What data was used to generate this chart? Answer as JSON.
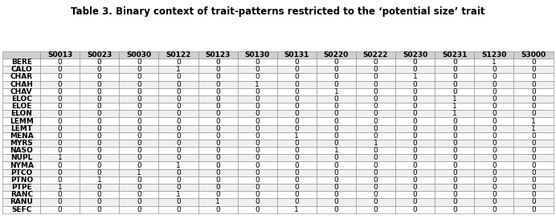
{
  "title": "Table 3. Binary context of trait-patterns restricted to the ‘potential size’ trait",
  "columns": [
    "",
    "S0013",
    "S0023",
    "S0030",
    "S0122",
    "S0123",
    "S0130",
    "S0131",
    "S0220",
    "S0222",
    "S0230",
    "S0231",
    "S1230",
    "S3000"
  ],
  "rows": [
    [
      "BERE",
      0,
      0,
      0,
      0,
      0,
      0,
      0,
      0,
      0,
      0,
      0,
      1,
      0
    ],
    [
      "CALO",
      0,
      0,
      0,
      1,
      0,
      0,
      0,
      0,
      0,
      0,
      0,
      0,
      0
    ],
    [
      "CHAR",
      0,
      0,
      0,
      0,
      0,
      0,
      0,
      0,
      0,
      1,
      0,
      0,
      0
    ],
    [
      "CHAH",
      0,
      0,
      0,
      0,
      0,
      1,
      0,
      0,
      0,
      0,
      0,
      0,
      0
    ],
    [
      "CHAV",
      0,
      0,
      0,
      0,
      0,
      0,
      0,
      1,
      0,
      0,
      0,
      0,
      0
    ],
    [
      "ELOC",
      0,
      0,
      0,
      0,
      0,
      0,
      0,
      0,
      0,
      0,
      1,
      0,
      0
    ],
    [
      "ELOE",
      0,
      0,
      0,
      0,
      0,
      0,
      0,
      0,
      0,
      0,
      1,
      0,
      0
    ],
    [
      "ELON",
      0,
      0,
      0,
      0,
      0,
      0,
      0,
      0,
      0,
      0,
      1,
      0,
      0
    ],
    [
      "LEMM",
      0,
      0,
      0,
      0,
      0,
      0,
      0,
      0,
      0,
      0,
      0,
      0,
      1
    ],
    [
      "LEMT",
      0,
      0,
      0,
      0,
      0,
      0,
      0,
      0,
      0,
      0,
      0,
      0,
      1
    ],
    [
      "MENA",
      0,
      0,
      0,
      0,
      0,
      0,
      1,
      0,
      0,
      0,
      0,
      0,
      0
    ],
    [
      "MYRS",
      0,
      0,
      0,
      0,
      0,
      0,
      0,
      0,
      1,
      0,
      0,
      0,
      0
    ],
    [
      "NASO",
      0,
      0,
      0,
      0,
      0,
      0,
      0,
      1,
      0,
      0,
      0,
      0,
      0
    ],
    [
      "NUPL",
      1,
      0,
      0,
      0,
      0,
      0,
      0,
      0,
      0,
      0,
      0,
      0,
      0
    ],
    [
      "NYMA",
      0,
      0,
      0,
      1,
      0,
      0,
      0,
      0,
      0,
      0,
      0,
      0,
      0
    ],
    [
      "PTCO",
      0,
      0,
      1,
      0,
      0,
      0,
      0,
      0,
      0,
      0,
      0,
      0,
      0
    ],
    [
      "PTNO",
      0,
      1,
      0,
      0,
      0,
      0,
      0,
      0,
      0,
      0,
      0,
      0,
      0
    ],
    [
      "PTPE",
      1,
      0,
      0,
      0,
      0,
      0,
      0,
      0,
      0,
      0,
      0,
      0,
      0
    ],
    [
      "RANC",
      0,
      0,
      0,
      1,
      0,
      0,
      0,
      0,
      0,
      0,
      0,
      0,
      0
    ],
    [
      "RANU",
      0,
      0,
      0,
      0,
      1,
      0,
      0,
      0,
      0,
      0,
      0,
      0,
      0
    ],
    [
      "SEFC",
      0,
      0,
      0,
      0,
      0,
      0,
      1,
      0,
      0,
      0,
      0,
      0,
      0
    ]
  ],
  "header_bg": "#d0d0d0",
  "row_bg_even": "#ffffff",
  "row_bg_odd": "#f0f0f0",
  "border_color": "#888888",
  "text_color": "#000000",
  "title_fontsize": 8.5,
  "cell_fontsize": 6.5,
  "header_fontsize": 6.5,
  "row_label_fontsize": 6.5,
  "fig_width": 6.92,
  "fig_height": 2.73,
  "dpi": 100
}
